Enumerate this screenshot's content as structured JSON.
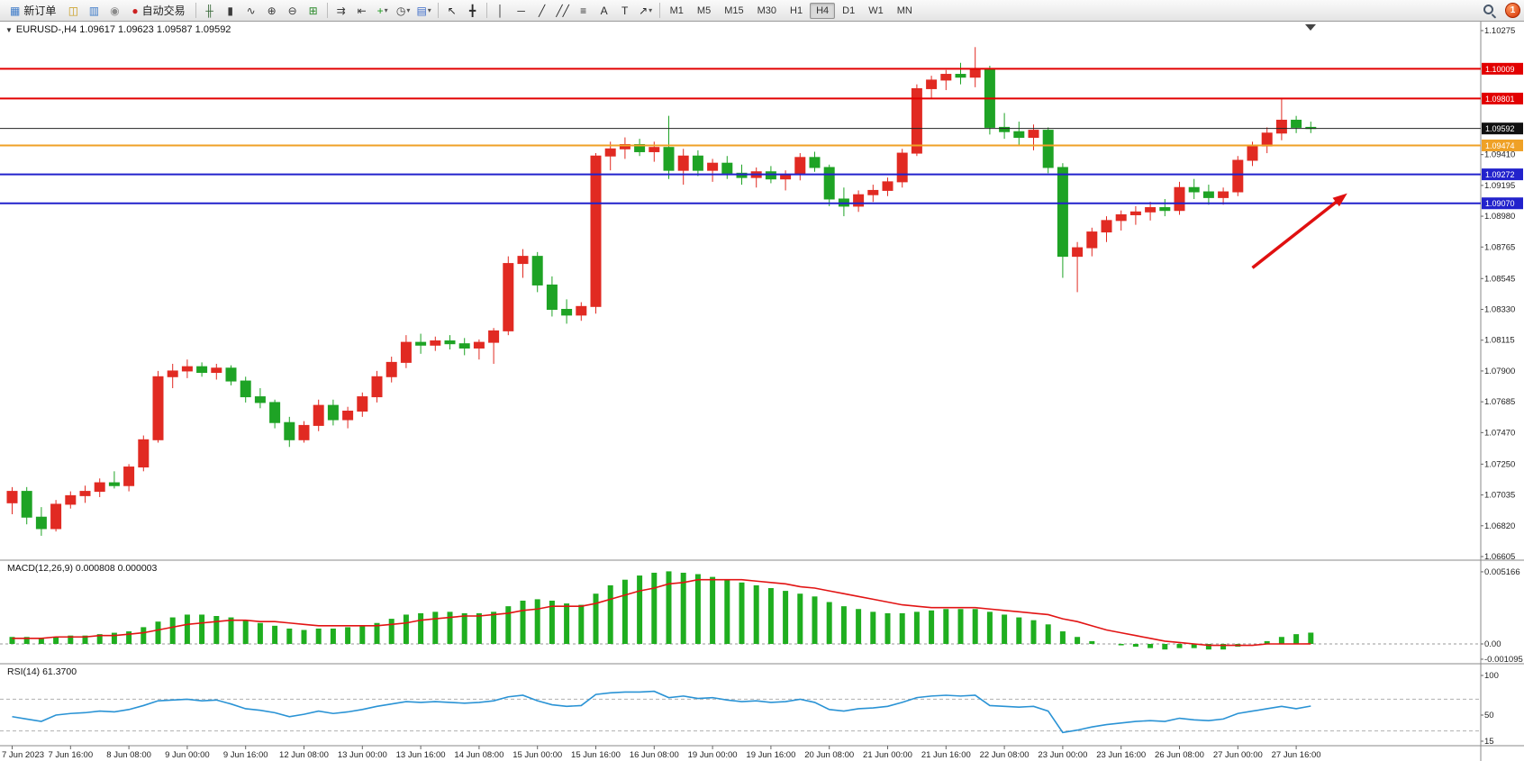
{
  "toolbar": {
    "notification_count": "1",
    "active_timeframe": "H4",
    "timeframes": [
      "M1",
      "M5",
      "M15",
      "M30",
      "H1",
      "H4",
      "D1",
      "W1",
      "MN"
    ],
    "groups": [
      {
        "items": [
          {
            "name": "new-order-button",
            "glyph": "▦",
            "glyph_color": "#3c7ac8",
            "label": "新订单"
          },
          {
            "name": "market-depth-button",
            "glyph": "◫",
            "glyph_color": "#c89a18"
          },
          {
            "name": "chart-window-button",
            "glyph": "▥",
            "glyph_color": "#3c7ac8"
          },
          {
            "name": "community-button",
            "glyph": "◉",
            "glyph_color": "#8a8a8a"
          },
          {
            "name": "auto-trading-button",
            "glyph": "●",
            "glyph_color": "#cc2222",
            "label": "自动交易"
          }
        ]
      },
      {
        "items": [
          {
            "name": "bar-chart-button",
            "glyph": "╫",
            "glyph_color": "#3a6a3a"
          },
          {
            "name": "candlestick-chart-button",
            "glyph": "▮",
            "glyph_color": "#3a3a3a"
          },
          {
            "name": "line-chart-button",
            "glyph": "∿",
            "glyph_color": "#3a3a3a"
          },
          {
            "name": "zoom-in-button",
            "glyph": "⊕",
            "glyph_color": "#3a3a3a"
          },
          {
            "name": "zoom-out-button",
            "glyph": "⊖",
            "glyph_color": "#3a3a3a"
          },
          {
            "name": "tile-windows-button",
            "glyph": "⊞",
            "glyph_color": "#2a8a2a"
          }
        ]
      },
      {
        "items": [
          {
            "name": "auto-scroll-button",
            "glyph": "⇉",
            "glyph_color": "#3a3a3a"
          },
          {
            "name": "chart-shift-button",
            "glyph": "⇤",
            "glyph_color": "#3a3a3a"
          },
          {
            "name": "indicators-button",
            "glyph": "+",
            "glyph_color": "#1a9a1a",
            "dropdown": true
          },
          {
            "name": "periods-button",
            "glyph": "◷",
            "glyph_color": "#3a3a3a",
            "dropdown": true
          },
          {
            "name": "templates-button",
            "glyph": "▤",
            "glyph_color": "#3a6ac8",
            "dropdown": true
          }
        ]
      },
      {
        "items": [
          {
            "name": "cursor-button",
            "glyph": "↖",
            "glyph_color": "#2a2a2a"
          },
          {
            "name": "crosshair-button",
            "glyph": "╋",
            "glyph_color": "#2a2a2a"
          }
        ]
      },
      {
        "items": [
          {
            "name": "vertical-line-button",
            "glyph": "│",
            "glyph_color": "#2a2a2a"
          },
          {
            "name": "horizontal-line-button",
            "glyph": "─",
            "glyph_color": "#2a2a2a"
          },
          {
            "name": "trendline-button",
            "glyph": "╱",
            "glyph_color": "#2a2a2a"
          },
          {
            "name": "channel-button",
            "glyph": "╱╱",
            "glyph_color": "#2a2a2a"
          },
          {
            "name": "fibonacci-button",
            "glyph": "≡",
            "glyph_color": "#2a2a2a"
          },
          {
            "name": "text-button",
            "glyph": "A",
            "glyph_color": "#2a2a2a"
          },
          {
            "name": "text-label-button",
            "glyph": "T",
            "glyph_color": "#2a2a2a"
          },
          {
            "name": "arrows-button",
            "glyph": "↗",
            "glyph_color": "#2a2a2a",
            "dropdown": true
          }
        ]
      }
    ]
  },
  "chart": {
    "dropdown_glyph": "▼",
    "symbol_info": "EURUSD-,H4  1.09617 1.09623 1.09587 1.09592",
    "macd_label": "MACD(12,26,9) 0.000808 0.000003",
    "rsi_label": "RSI(14) 61.3700"
  },
  "chart_data": [
    {
      "type": "candlestick",
      "symbol": "EURUSD-",
      "timeframe": "H4",
      "ohlc_legend": {
        "open": "1.09617",
        "high": "1.09623",
        "low": "1.09587",
        "close": "1.09592"
      },
      "ylim": [
        1.06605,
        1.10275
      ],
      "bull_color": "#e12a22",
      "bear_color": "#1ea325",
      "current_price": 1.09592,
      "current_price_label": "1.09592",
      "y_ticks": [
        "1.10275",
        "1.09410",
        "1.09195",
        "1.08980",
        "1.08765",
        "1.08545",
        "1.08330",
        "1.08115",
        "1.07900",
        "1.07685",
        "1.07470",
        "1.07250",
        "1.07035",
        "1.06820",
        "1.06605"
      ],
      "x_tick_every": 4,
      "x_tick_labels": [
        "7 Jun 2023",
        "7 Jun 16:00",
        "8 Jun 08:00",
        "9 Jun 00:00",
        "9 Jun 16:00",
        "12 Jun 08:00",
        "13 Jun 00:00",
        "13 Jun 16:00",
        "14 Jun 08:00",
        "15 Jun 00:00",
        "15 Jun 16:00",
        "16 Jun 08:00",
        "19 Jun 00:00",
        "19 Jun 16:00",
        "20 Jun 08:00",
        "21 Jun 00:00",
        "21 Jun 16:00",
        "22 Jun 08:00",
        "23 Jun 00:00",
        "23 Jun 16:00",
        "26 Jun 08:00",
        "27 Jun 00:00",
        "27 Jun 16:00"
      ],
      "hlines": [
        {
          "name": "resistance-line-upper",
          "price": 1.10009,
          "label": "1.10009",
          "color": "#e20000"
        },
        {
          "name": "resistance-line-lower",
          "price": 1.09801,
          "label": "1.09801",
          "color": "#e20000"
        },
        {
          "name": "pivot-line",
          "price": 1.09474,
          "label": "1.09474",
          "color": "#efa126"
        },
        {
          "name": "support-line-upper",
          "price": 1.09272,
          "label": "1.09272",
          "color": "#2222cc"
        },
        {
          "name": "support-line-lower",
          "price": 1.0907,
          "label": "1.09070",
          "color": "#2222cc"
        }
      ],
      "arrow_annotation": {
        "from": [
          85,
          1.0862
        ],
        "to": [
          91.5,
          1.0914
        ],
        "color": "#e01010"
      },
      "ohlc": [
        [
          1.0698,
          1.0709,
          1.069,
          1.0706
        ],
        [
          1.0706,
          1.0709,
          1.0683,
          1.0688
        ],
        [
          1.0688,
          1.0695,
          1.0675,
          1.068
        ],
        [
          1.068,
          1.07,
          1.0678,
          1.0697
        ],
        [
          1.0697,
          1.0706,
          1.0694,
          1.0703
        ],
        [
          1.0703,
          1.071,
          1.0698,
          1.0706
        ],
        [
          1.0706,
          1.0715,
          1.0702,
          1.0712
        ],
        [
          1.0712,
          1.072,
          1.0708,
          1.071
        ],
        [
          1.071,
          1.0725,
          1.0706,
          1.0723
        ],
        [
          1.0723,
          1.0745,
          1.072,
          1.0742
        ],
        [
          1.0742,
          1.079,
          1.074,
          1.0786
        ],
        [
          1.0786,
          1.0795,
          1.0778,
          1.079
        ],
        [
          1.079,
          1.0798,
          1.0785,
          1.0793
        ],
        [
          1.0793,
          1.0796,
          1.0786,
          1.0789
        ],
        [
          1.0789,
          1.0795,
          1.0784,
          1.0792
        ],
        [
          1.0792,
          1.0794,
          1.078,
          1.0783
        ],
        [
          1.0783,
          1.0786,
          1.0768,
          1.0772
        ],
        [
          1.0772,
          1.0778,
          1.0764,
          1.0768
        ],
        [
          1.0768,
          1.077,
          1.075,
          1.0754
        ],
        [
          1.0754,
          1.0758,
          1.0737,
          1.0742
        ],
        [
          1.0742,
          1.0755,
          1.074,
          1.0752
        ],
        [
          1.0752,
          1.077,
          1.0748,
          1.0766
        ],
        [
          1.0766,
          1.077,
          1.0752,
          1.0756
        ],
        [
          1.0756,
          1.0765,
          1.075,
          1.0762
        ],
        [
          1.0762,
          1.0775,
          1.0758,
          1.0772
        ],
        [
          1.0772,
          1.079,
          1.0768,
          1.0786
        ],
        [
          1.0786,
          1.08,
          1.0782,
          1.0796
        ],
        [
          1.0796,
          1.0815,
          1.0792,
          1.081
        ],
        [
          1.081,
          1.0816,
          1.0802,
          1.0808
        ],
        [
          1.0808,
          1.0814,
          1.0804,
          1.0811
        ],
        [
          1.0811,
          1.0815,
          1.0805,
          1.0809
        ],
        [
          1.0809,
          1.0813,
          1.0801,
          1.0806
        ],
        [
          1.0806,
          1.0812,
          1.0798,
          1.081
        ],
        [
          1.081,
          1.082,
          1.0795,
          1.0818
        ],
        [
          1.0818,
          1.087,
          1.0815,
          1.0865
        ],
        [
          1.0865,
          1.0875,
          1.0855,
          1.087
        ],
        [
          1.087,
          1.0873,
          1.0845,
          1.085
        ],
        [
          1.085,
          1.0856,
          1.0828,
          1.0833
        ],
        [
          1.0833,
          1.084,
          1.0823,
          1.0829
        ],
        [
          1.0829,
          1.0838,
          1.0825,
          1.0835
        ],
        [
          1.0835,
          1.0942,
          1.083,
          1.094
        ],
        [
          1.094,
          1.095,
          1.093,
          1.0945
        ],
        [
          1.0945,
          1.0953,
          1.0938,
          1.0948
        ],
        [
          1.0948,
          1.0952,
          1.094,
          1.0943
        ],
        [
          1.0943,
          1.095,
          1.0936,
          1.0946
        ],
        [
          1.0946,
          1.0968,
          1.0924,
          1.093
        ],
        [
          1.093,
          1.0945,
          1.092,
          1.094
        ],
        [
          1.094,
          1.0944,
          1.0926,
          1.093
        ],
        [
          1.093,
          1.0938,
          1.0922,
          1.0935
        ],
        [
          1.0935,
          1.094,
          1.0924,
          1.0928
        ],
        [
          1.0928,
          1.0934,
          1.092,
          1.0925
        ],
        [
          1.0925,
          1.0932,
          1.0918,
          1.0929
        ],
        [
          1.0929,
          1.0933,
          1.0921,
          1.0924
        ],
        [
          1.0924,
          1.093,
          1.0916,
          1.0927
        ],
        [
          1.0927,
          1.0942,
          1.0923,
          1.0939
        ],
        [
          1.0939,
          1.0943,
          1.0929,
          1.0932
        ],
        [
          1.0932,
          1.0934,
          1.0905,
          1.091
        ],
        [
          1.091,
          1.0918,
          1.0898,
          1.0905
        ],
        [
          1.0905,
          1.0916,
          1.0901,
          1.0913
        ],
        [
          1.0913,
          1.092,
          1.0908,
          1.0916
        ],
        [
          1.0916,
          1.0925,
          1.0912,
          1.0922
        ],
        [
          1.0922,
          1.0945,
          1.0918,
          1.0942
        ],
        [
          1.0942,
          1.099,
          1.094,
          1.0987
        ],
        [
          1.0987,
          1.0996,
          1.098,
          1.0993
        ],
        [
          1.0993,
          1.1,
          1.0986,
          1.0997
        ],
        [
          1.0997,
          1.1005,
          1.099,
          1.0995
        ],
        [
          1.0995,
          1.1016,
          1.0988,
          1.1001
        ],
        [
          1.1001,
          1.1003,
          1.0955,
          1.096
        ],
        [
          1.096,
          1.097,
          1.0952,
          1.0957
        ],
        [
          1.0957,
          1.0964,
          1.0948,
          1.0953
        ],
        [
          1.0953,
          1.0962,
          1.0944,
          1.0958
        ],
        [
          1.0958,
          1.096,
          1.0928,
          1.0932
        ],
        [
          1.0932,
          1.0935,
          1.0855,
          1.087
        ],
        [
          1.087,
          1.088,
          1.0845,
          1.0876
        ],
        [
          1.0876,
          1.089,
          1.087,
          1.0887
        ],
        [
          1.0887,
          1.0898,
          1.088,
          1.0895
        ],
        [
          1.0895,
          1.0902,
          1.0888,
          1.0899
        ],
        [
          1.0899,
          1.0905,
          1.0892,
          1.0901
        ],
        [
          1.0901,
          1.0908,
          1.0895,
          1.0904
        ],
        [
          1.0904,
          1.091,
          1.0898,
          1.0902
        ],
        [
          1.0902,
          1.0922,
          1.0899,
          1.0918
        ],
        [
          1.0918,
          1.0924,
          1.091,
          1.0915
        ],
        [
          1.0915,
          1.092,
          1.0906,
          1.0911
        ],
        [
          1.0911,
          1.0918,
          1.0906,
          1.0915
        ],
        [
          1.0915,
          1.094,
          1.0912,
          1.0937
        ],
        [
          1.0937,
          1.095,
          1.0933,
          1.0947
        ],
        [
          1.0947,
          1.096,
          1.0942,
          1.0956
        ],
        [
          1.0956,
          1.098,
          1.0951,
          1.0965
        ],
        [
          1.0965,
          1.0968,
          1.0956,
          1.096
        ],
        [
          1.096,
          1.0964,
          1.0956,
          1.09592
        ]
      ]
    },
    {
      "type": "bar",
      "name": "MACD(12,26,9)",
      "bar_color": "#1fae1f",
      "signal_color": "#e21414",
      "y_ticks": [
        "0.005166",
        "0.00",
        "-0.001095"
      ],
      "values": [
        0.0005,
        0.0005,
        0.0004,
        0.0005,
        0.0006,
        0.0006,
        0.0007,
        0.0008,
        0.0009,
        0.0012,
        0.0016,
        0.0019,
        0.0021,
        0.0021,
        0.002,
        0.0019,
        0.0017,
        0.0015,
        0.0013,
        0.0011,
        0.001,
        0.0011,
        0.0011,
        0.0012,
        0.0013,
        0.0015,
        0.0018,
        0.0021,
        0.0022,
        0.0023,
        0.0023,
        0.0022,
        0.0022,
        0.0023,
        0.0027,
        0.0031,
        0.0032,
        0.0031,
        0.0029,
        0.0028,
        0.0036,
        0.0042,
        0.0046,
        0.0049,
        0.0051,
        0.0052,
        0.0051,
        0.005,
        0.0048,
        0.0046,
        0.0044,
        0.0042,
        0.004,
        0.0038,
        0.0036,
        0.0034,
        0.003,
        0.0027,
        0.0025,
        0.0023,
        0.0022,
        0.0022,
        0.0023,
        0.0024,
        0.0025,
        0.0025,
        0.0025,
        0.0023,
        0.0021,
        0.0019,
        0.0017,
        0.0014,
        0.0009,
        0.0005,
        0.0002,
        0,
        -0.0001,
        -0.0002,
        -0.0003,
        -0.0004,
        -0.0003,
        -0.0003,
        -0.0004,
        -0.0004,
        -0.0002,
        0,
        0.0002,
        0.0005,
        0.0007,
        0.000808
      ],
      "signal": [
        0.0004,
        0.0004,
        0.0004,
        0.0005,
        0.0005,
        0.0005,
        0.0006,
        0.0006,
        0.0007,
        0.0008,
        0.001,
        0.0012,
        0.0014,
        0.0015,
        0.0016,
        0.0017,
        0.0017,
        0.0016,
        0.0016,
        0.0015,
        0.0014,
        0.0013,
        0.0013,
        0.0013,
        0.0013,
        0.0013,
        0.0014,
        0.0015,
        0.0017,
        0.0018,
        0.0019,
        0.002,
        0.002,
        0.0021,
        0.0022,
        0.0024,
        0.0025,
        0.0027,
        0.0027,
        0.0027,
        0.0029,
        0.0032,
        0.0035,
        0.0038,
        0.004,
        0.0043,
        0.0044,
        0.0046,
        0.0046,
        0.0046,
        0.0046,
        0.0045,
        0.0044,
        0.0043,
        0.0041,
        0.004,
        0.0038,
        0.0036,
        0.0034,
        0.0032,
        0.003,
        0.0028,
        0.0027,
        0.0026,
        0.0026,
        0.0026,
        0.0026,
        0.0025,
        0.0024,
        0.0023,
        0.0022,
        0.0021,
        0.0018,
        0.0016,
        0.0013,
        0.001,
        0.0008,
        0.0006,
        0.0004,
        0.0002,
        0.0001,
        0,
        -0.0001,
        -0.0001,
        -0.0001,
        -0.0001,
        0,
        0,
        0,
        3e-06
      ]
    },
    {
      "type": "line",
      "name": "RSI(14)",
      "line_color": "#2a93d5",
      "levels": [
        70,
        30
      ],
      "y_ticks": [
        "100",
        "50",
        "15"
      ],
      "values": [
        48,
        45,
        42,
        50,
        52,
        53,
        55,
        54,
        57,
        62,
        68,
        69,
        70,
        68,
        69,
        64,
        58,
        56,
        53,
        48,
        51,
        55,
        52,
        54,
        57,
        61,
        64,
        67,
        66,
        67,
        66,
        65,
        66,
        68,
        73,
        75,
        68,
        63,
        61,
        62,
        76,
        78,
        79,
        79,
        80,
        72,
        74,
        71,
        72,
        69,
        67,
        68,
        66,
        67,
        70,
        66,
        57,
        55,
        58,
        59,
        61,
        66,
        72,
        74,
        75,
        74,
        75,
        62,
        61,
        60,
        61,
        55,
        28,
        31,
        35,
        38,
        40,
        42,
        43,
        42,
        46,
        44,
        43,
        45,
        52,
        55,
        58,
        61,
        58,
        61.37
      ]
    }
  ]
}
